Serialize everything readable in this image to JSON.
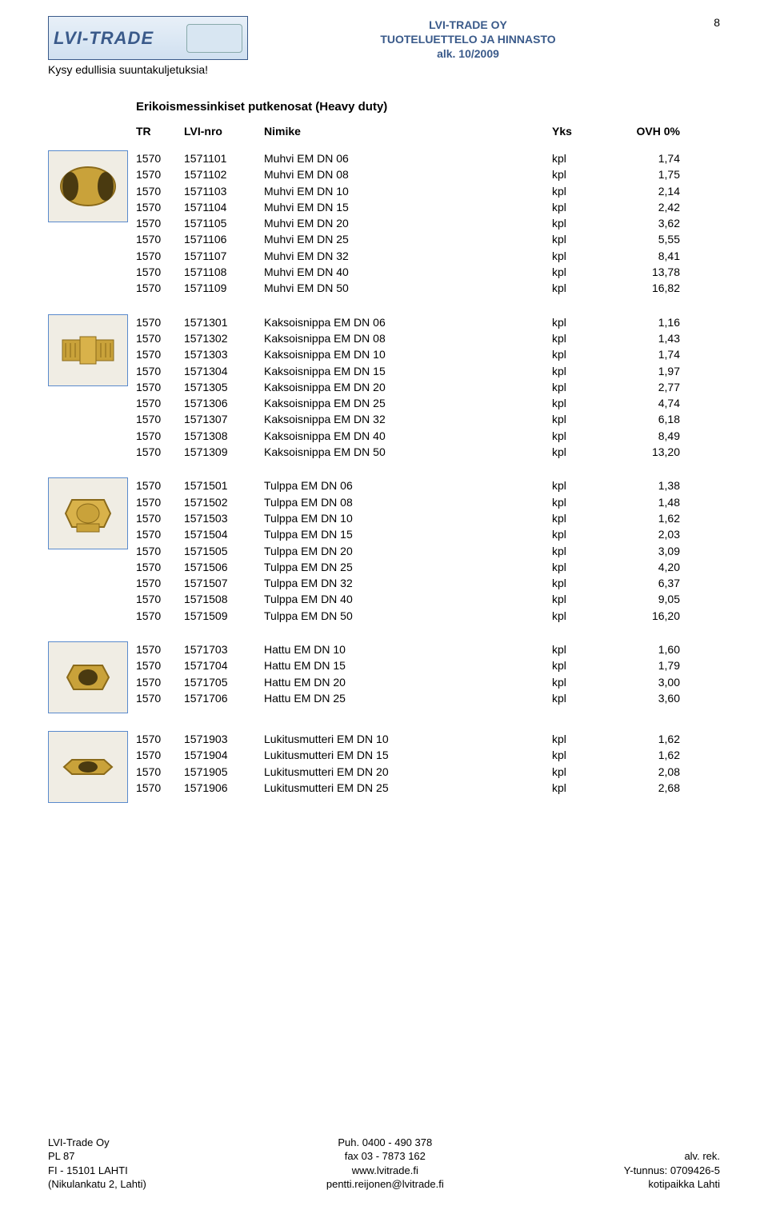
{
  "page_number": "8",
  "header": {
    "company": "LVI-TRADE OY",
    "subtitle": "TUOTELUETTELO JA HINNASTO",
    "date": "alk. 10/2009",
    "logo_text": "LVI-TRADE",
    "ship_note": "Kysy edullisia suuntakuljetuksia!"
  },
  "section_title": "Erikoismessinkiset putkenosat (Heavy duty)",
  "columns": {
    "tr": "TR",
    "lvi": "LVI-nro",
    "nimike": "Nimike",
    "yks": "Yks",
    "ovh": "OVH 0%"
  },
  "groups": [
    {
      "rows": [
        {
          "tr": "1570",
          "lvi": "1571101",
          "nimike": "Muhvi EM  DN 06",
          "yks": "kpl",
          "ovh": "1,74"
        },
        {
          "tr": "1570",
          "lvi": "1571102",
          "nimike": "Muhvi EM  DN 08",
          "yks": "kpl",
          "ovh": "1,75"
        },
        {
          "tr": "1570",
          "lvi": "1571103",
          "nimike": "Muhvi EM  DN 10",
          "yks": "kpl",
          "ovh": "2,14"
        },
        {
          "tr": "1570",
          "lvi": "1571104",
          "nimike": "Muhvi EM  DN 15",
          "yks": "kpl",
          "ovh": "2,42"
        },
        {
          "tr": "1570",
          "lvi": "1571105",
          "nimike": "Muhvi EM  DN 20",
          "yks": "kpl",
          "ovh": "3,62"
        },
        {
          "tr": "1570",
          "lvi": "1571106",
          "nimike": "Muhvi EM  DN 25",
          "yks": "kpl",
          "ovh": "5,55"
        },
        {
          "tr": "1570",
          "lvi": "1571107",
          "nimike": "Muhvi EM  DN 32",
          "yks": "kpl",
          "ovh": "8,41"
        },
        {
          "tr": "1570",
          "lvi": "1571108",
          "nimike": "Muhvi EM  DN 40",
          "yks": "kpl",
          "ovh": "13,78"
        },
        {
          "tr": "1570",
          "lvi": "1571109",
          "nimike": "Muhvi EM  DN 50",
          "yks": "kpl",
          "ovh": "16,82"
        }
      ]
    },
    {
      "rows": [
        {
          "tr": "1570",
          "lvi": "1571301",
          "nimike": "Kaksoisnippa EM  DN 06",
          "yks": "kpl",
          "ovh": "1,16"
        },
        {
          "tr": "1570",
          "lvi": "1571302",
          "nimike": "Kaksoisnippa EM  DN 08",
          "yks": "kpl",
          "ovh": "1,43"
        },
        {
          "tr": "1570",
          "lvi": "1571303",
          "nimike": "Kaksoisnippa EM  DN 10",
          "yks": "kpl",
          "ovh": "1,74"
        },
        {
          "tr": "1570",
          "lvi": "1571304",
          "nimike": "Kaksoisnippa EM  DN 15",
          "yks": "kpl",
          "ovh": "1,97"
        },
        {
          "tr": "1570",
          "lvi": "1571305",
          "nimike": "Kaksoisnippa EM  DN 20",
          "yks": "kpl",
          "ovh": "2,77"
        },
        {
          "tr": "1570",
          "lvi": "1571306",
          "nimike": "Kaksoisnippa EM  DN 25",
          "yks": "kpl",
          "ovh": "4,74"
        },
        {
          "tr": "1570",
          "lvi": "1571307",
          "nimike": "Kaksoisnippa EM  DN 32",
          "yks": "kpl",
          "ovh": "6,18"
        },
        {
          "tr": "1570",
          "lvi": "1571308",
          "nimike": "Kaksoisnippa EM  DN 40",
          "yks": "kpl",
          "ovh": "8,49"
        },
        {
          "tr": "1570",
          "lvi": "1571309",
          "nimike": "Kaksoisnippa EM  DN 50",
          "yks": "kpl",
          "ovh": "13,20"
        }
      ]
    },
    {
      "rows": [
        {
          "tr": "1570",
          "lvi": "1571501",
          "nimike": "Tulppa EM  DN 06",
          "yks": "kpl",
          "ovh": "1,38"
        },
        {
          "tr": "1570",
          "lvi": "1571502",
          "nimike": "Tulppa EM  DN 08",
          "yks": "kpl",
          "ovh": "1,48"
        },
        {
          "tr": "1570",
          "lvi": "1571503",
          "nimike": "Tulppa EM  DN 10",
          "yks": "kpl",
          "ovh": "1,62"
        },
        {
          "tr": "1570",
          "lvi": "1571504",
          "nimike": "Tulppa EM  DN 15",
          "yks": "kpl",
          "ovh": "2,03"
        },
        {
          "tr": "1570",
          "lvi": "1571505",
          "nimike": "Tulppa EM  DN 20",
          "yks": "kpl",
          "ovh": "3,09"
        },
        {
          "tr": "1570",
          "lvi": "1571506",
          "nimike": "Tulppa EM  DN 25",
          "yks": "kpl",
          "ovh": "4,20"
        },
        {
          "tr": "1570",
          "lvi": "1571507",
          "nimike": "Tulppa EM  DN 32",
          "yks": "kpl",
          "ovh": "6,37"
        },
        {
          "tr": "1570",
          "lvi": "1571508",
          "nimike": "Tulppa EM  DN 40",
          "yks": "kpl",
          "ovh": "9,05"
        },
        {
          "tr": "1570",
          "lvi": "1571509",
          "nimike": "Tulppa EM  DN 50",
          "yks": "kpl",
          "ovh": "16,20"
        }
      ]
    },
    {
      "rows": [
        {
          "tr": "1570",
          "lvi": "1571703",
          "nimike": "Hattu  EM  DN 10",
          "yks": "kpl",
          "ovh": "1,60"
        },
        {
          "tr": "1570",
          "lvi": "1571704",
          "nimike": "Hattu  EM  DN 15",
          "yks": "kpl",
          "ovh": "1,79"
        },
        {
          "tr": "1570",
          "lvi": "1571705",
          "nimike": "Hattu  EM  DN 20",
          "yks": "kpl",
          "ovh": "3,00"
        },
        {
          "tr": "1570",
          "lvi": "1571706",
          "nimike": "Hattu  EM  DN 25",
          "yks": "kpl",
          "ovh": "3,60"
        }
      ]
    },
    {
      "rows": [
        {
          "tr": "1570",
          "lvi": "1571903",
          "nimike": "Lukitusmutteri EM  DN 10",
          "yks": "kpl",
          "ovh": "1,62"
        },
        {
          "tr": "1570",
          "lvi": "1571904",
          "nimike": "Lukitusmutteri EM  DN 15",
          "yks": "kpl",
          "ovh": "1,62"
        },
        {
          "tr": "1570",
          "lvi": "1571905",
          "nimike": "Lukitusmutteri EM  DN 20",
          "yks": "kpl",
          "ovh": "2,08"
        },
        {
          "tr": "1570",
          "lvi": "1571906",
          "nimike": "Lukitusmutteri EM  DN 25",
          "yks": "kpl",
          "ovh": "2,68"
        }
      ]
    }
  ],
  "footer": {
    "left": [
      "LVI-Trade Oy",
      "PL 87",
      "FI - 15101 LAHTI",
      "(Nikulankatu 2, Lahti)"
    ],
    "center": [
      "Puh. 0400 - 490 378",
      "fax 03 - 7873 162",
      "www.lvitrade.fi",
      "pentti.reijonen@lvitrade.fi"
    ],
    "right": [
      "",
      "alv. rek.",
      "Y-tunnus: 0709426-5",
      "kotipaikka  Lahti"
    ]
  },
  "colors": {
    "header_text": "#3a5a8a",
    "img_border": "#5a8acc",
    "brass": "#c9a23a"
  }
}
